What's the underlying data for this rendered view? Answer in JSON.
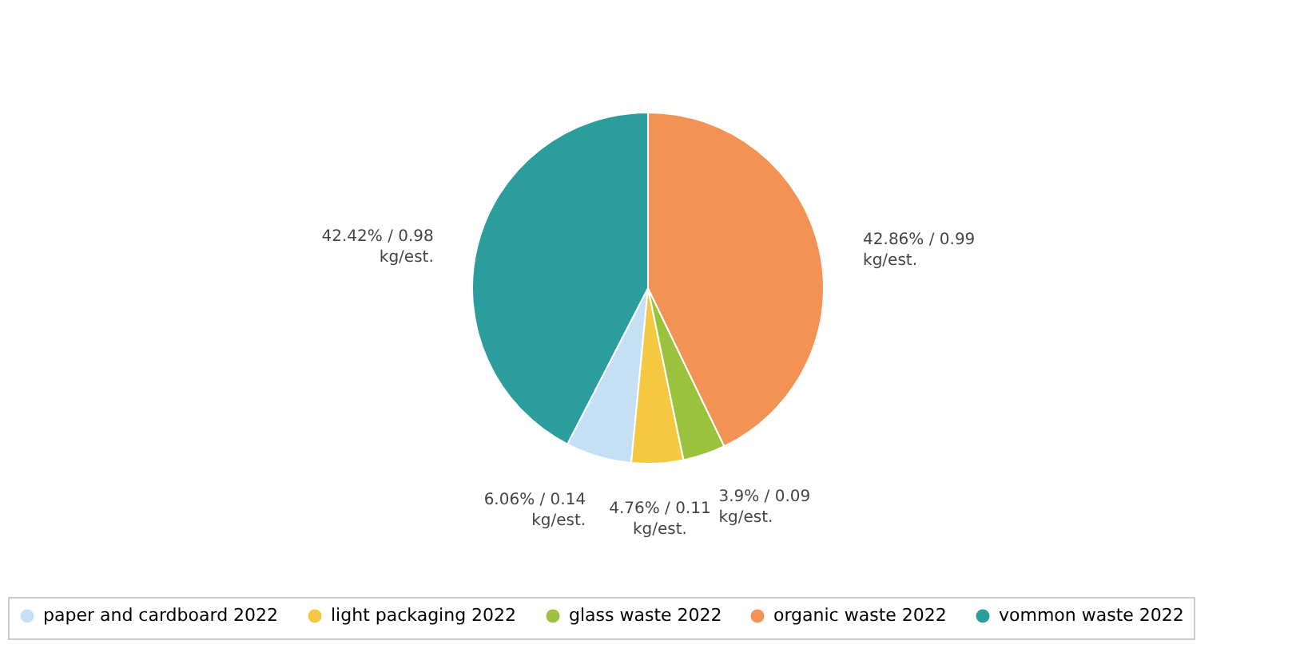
{
  "chart_data": {
    "type": "pie",
    "categories": [
      "paper and cardboard 2022",
      "light packaging 2022",
      "glass waste 2022",
      "organic waste 2022",
      "vommon waste 2022"
    ],
    "values": [
      6.06,
      4.76,
      3.9,
      42.86,
      42.42
    ],
    "colors": [
      "#c5e0f5",
      "#f5c842",
      "#9bc23c",
      "#f29254",
      "#2a9d9c"
    ],
    "value_labels": [
      "6.06% / 0.14\nkg/est.",
      "4.76% / 0.11\nkg/est.",
      "3.9% / 0.09\nkg/est.",
      "42.86% / 0.99\nkg/est.",
      "42.42% / 0.98\nkg/est."
    ],
    "legend": "bottom"
  }
}
